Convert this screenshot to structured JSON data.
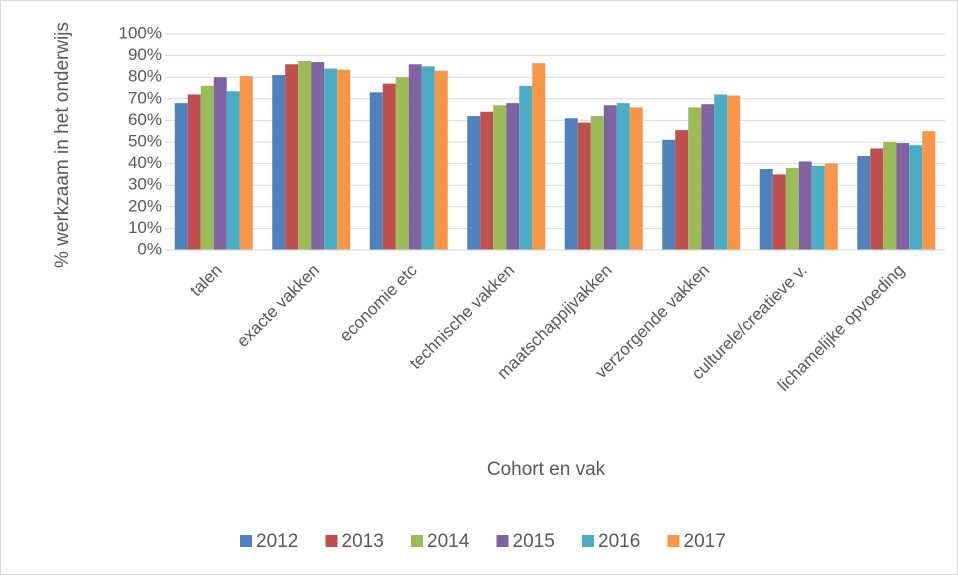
{
  "chart_data": {
    "type": "bar",
    "y_label": "% werkzaam in het onderwijs",
    "x_label": "Cohort en vak",
    "categories": [
      "talen",
      "exacte vakken",
      "economie etc",
      "technische vakken",
      "maatschappijvakken",
      "verzorgende vakken",
      "culturele/creatieve v.",
      "lichamelijke opvoeding"
    ],
    "series": [
      {
        "name": "2012",
        "color": "#4f81bd",
        "values": [
          68,
          81,
          73,
          62,
          61,
          51,
          37.5,
          43.5
        ]
      },
      {
        "name": "2013",
        "color": "#c0504d",
        "values": [
          72,
          86,
          77,
          64,
          59,
          55.5,
          35,
          47
        ]
      },
      {
        "name": "2014",
        "color": "#9bbb59",
        "values": [
          76,
          87.5,
          80,
          67,
          62,
          66,
          38,
          50
        ]
      },
      {
        "name": "2015",
        "color": "#8064a2",
        "values": [
          80,
          87,
          86,
          68,
          67,
          67.5,
          41,
          49.5
        ]
      },
      {
        "name": "2016",
        "color": "#4bacc6",
        "values": [
          73.5,
          84,
          85,
          76,
          68,
          72,
          39,
          48.5
        ]
      },
      {
        "name": "2017",
        "color": "#f79646",
        "values": [
          80.5,
          83.5,
          83,
          86.5,
          66,
          71.5,
          40,
          55
        ]
      }
    ],
    "ylim": [
      0,
      100
    ],
    "yticks": [
      {
        "value": 0,
        "label": "0%"
      },
      {
        "value": 10,
        "label": "10%"
      },
      {
        "value": 20,
        "label": "20%"
      },
      {
        "value": 30,
        "label": "30%"
      },
      {
        "value": 40,
        "label": "40%"
      },
      {
        "value": 50,
        "label": "50%"
      },
      {
        "value": 60,
        "label": "60%"
      },
      {
        "value": 70,
        "label": "70%"
      },
      {
        "value": 80,
        "label": "80%"
      },
      {
        "value": 90,
        "label": "90%"
      },
      {
        "value": 100,
        "label": "100%"
      }
    ],
    "grid": true,
    "legend": "bottom"
  }
}
